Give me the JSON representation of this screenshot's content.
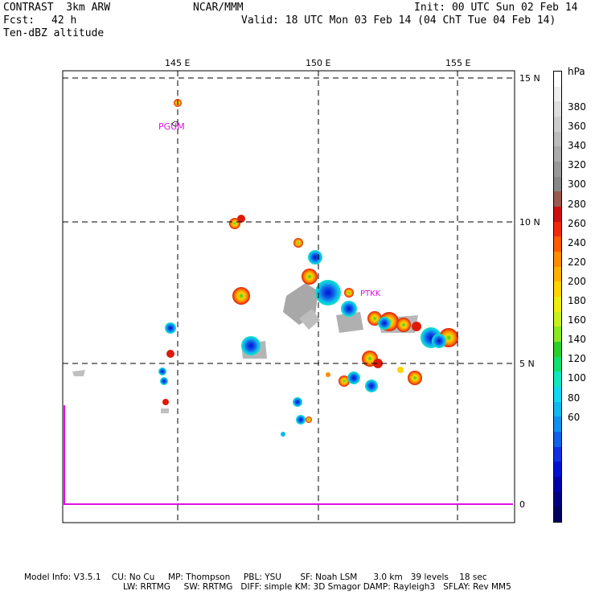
{
  "header": {
    "model": "CONTRAST  3km ARW",
    "org": "NCAR/MMM",
    "init": "Init: 00 UTC Sun 02 Feb 14",
    "fcst_label": "Fcst:",
    "fcst_value": "42 h",
    "valid": "Valid: 18 UTC Mon 03 Feb 14 (04 ChT Tue 04 Feb 14)",
    "field": "Ten-dBZ altitude"
  },
  "map": {
    "lon_ticks": [
      "145 E",
      "150 E",
      "155 E"
    ],
    "lat_ticks": [
      "15 N",
      "10 N",
      "5 N"
    ],
    "stations": [
      "PGUM",
      "PTKK"
    ],
    "profile_axis_label": "0"
  },
  "legend": {
    "unit": "hPa",
    "labels": [
      "380",
      "360",
      "340",
      "320",
      "300",
      "280",
      "260",
      "240",
      "220",
      "200",
      "180",
      "160",
      "140",
      "120",
      "100",
      "80",
      "60"
    ],
    "colors": [
      "#ffffff",
      "#eeeeee",
      "#dddddd",
      "#cccccc",
      "#bbbbbb",
      "#aaaaaa",
      "#999999",
      "#888888",
      "#9a5a50",
      "#cc1010",
      "#ee2a0a",
      "#ff5a00",
      "#ff8c00",
      "#ffb000",
      "#ffd400",
      "#eeee10",
      "#c8f020",
      "#8ae820",
      "#2ad02a",
      "#10e070",
      "#10e8c0",
      "#10d8f0",
      "#10b8f0",
      "#1090f0",
      "#1060e8",
      "#1030e0",
      "#0010d0",
      "#0000a8",
      "#000080",
      "#000060"
    ]
  },
  "footer": {
    "line1": "Model Info: V3.5.1    CU: No Cu     MP: Thompson     PBL: YSU       SF: Noah LSM      3.0 km   39 levels    18 sec",
    "line2": "LW: RRTMG     SW: RRTMG   DIFF: simple KM: 3D Smagor DAMP: Rayleigh3   SFLAY: Rev MM5"
  }
}
